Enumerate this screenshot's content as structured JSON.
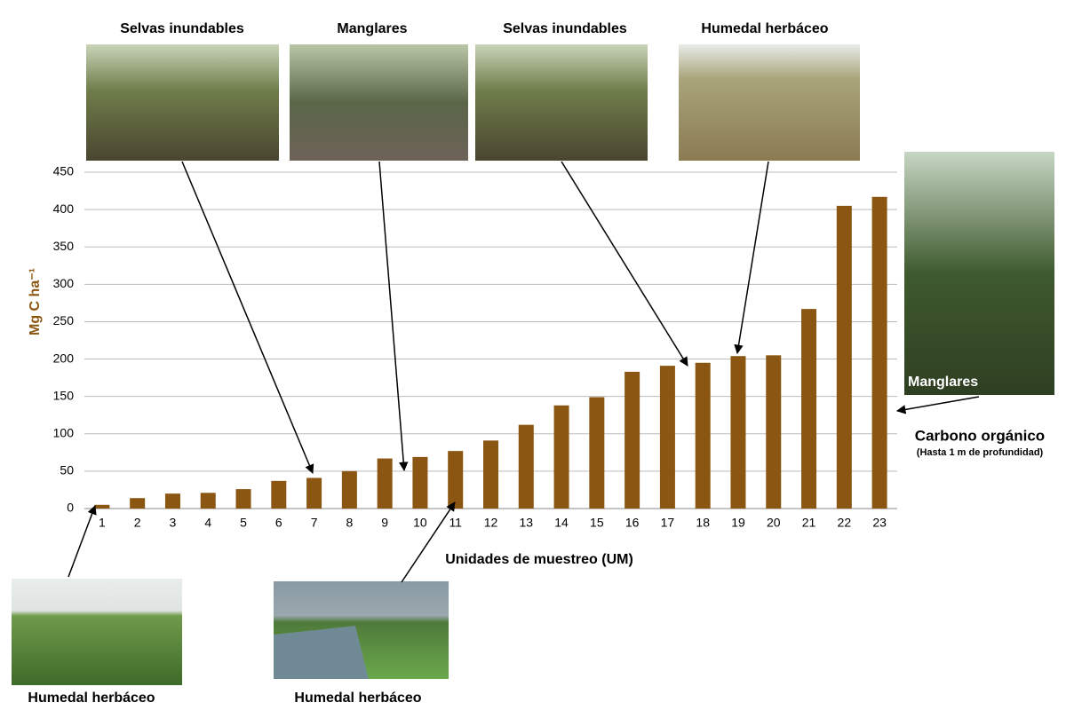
{
  "chart_data": {
    "type": "bar",
    "y_label": "Mg C ha⁻¹",
    "x_label": "Unidades de muestreo (UM)",
    "categories": [
      "1",
      "2",
      "3",
      "4",
      "5",
      "6",
      "7",
      "8",
      "9",
      "10",
      "11",
      "12",
      "13",
      "14",
      "15",
      "16",
      "17",
      "18",
      "19",
      "20",
      "21",
      "22",
      "23"
    ],
    "values": [
      5,
      14,
      20,
      21,
      26,
      37,
      41,
      50,
      67,
      69,
      77,
      91,
      112,
      138,
      149,
      183,
      191,
      195,
      204,
      205,
      267,
      405,
      417
    ],
    "color": "#8b5611",
    "ylim": [
      0,
      450
    ],
    "yticks": [
      0,
      50,
      100,
      150,
      200,
      250,
      300,
      350,
      400,
      450
    ],
    "grid": true,
    "annotations": [
      {
        "text": "Selvas inundables"
      },
      {
        "text": "Manglares"
      },
      {
        "text": "Selvas inundables"
      },
      {
        "text": "Humedal herbáceo"
      },
      {
        "text": "Manglares"
      },
      {
        "text": "Humedal herbáceo"
      },
      {
        "text": "Humedal herbáceo"
      },
      {
        "text": "Carbono orgánico"
      },
      {
        "text": "(Hasta 1 m de profundidad)"
      }
    ]
  }
}
